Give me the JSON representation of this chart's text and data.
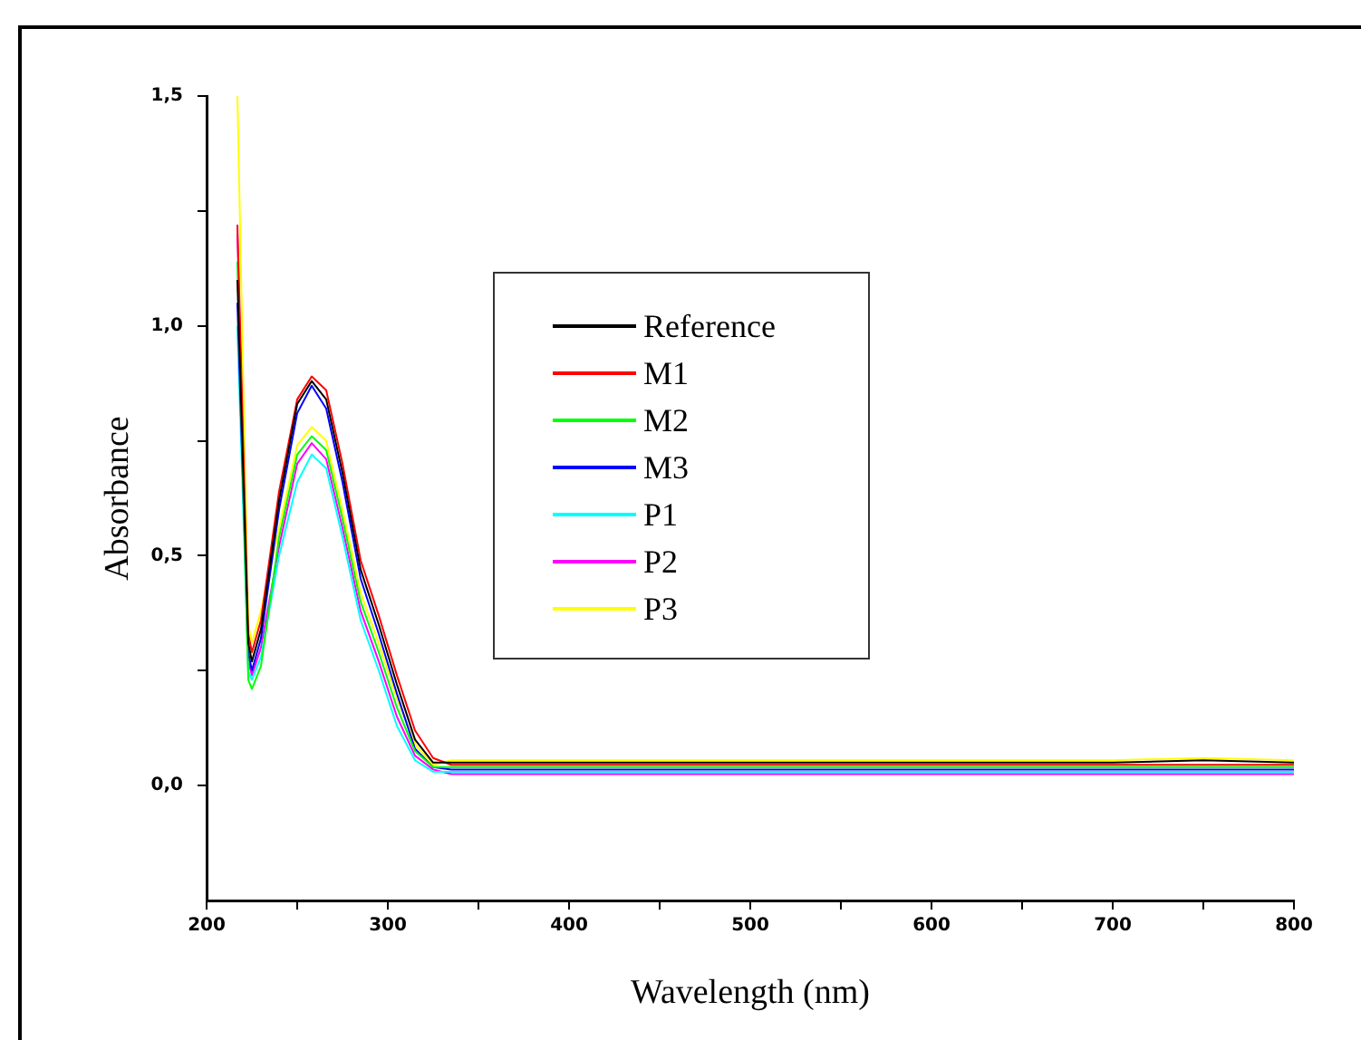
{
  "chart_data": {
    "type": "line",
    "xlabel": "Wavelength (nm)",
    "ylabel": "Absorbance",
    "x": [
      217,
      223,
      225,
      230,
      240,
      250,
      258,
      266,
      275,
      285,
      295,
      305,
      315,
      325,
      335,
      400,
      500,
      600,
      700,
      750,
      800
    ],
    "series": [
      {
        "name": "Reference",
        "color": "#000000",
        "values": [
          1.1,
          0.31,
          0.27,
          0.34,
          0.62,
          0.83,
          0.88,
          0.84,
          0.68,
          0.47,
          0.35,
          0.22,
          0.1,
          0.05,
          0.05,
          0.05,
          0.05,
          0.05,
          0.05,
          0.055,
          0.05
        ]
      },
      {
        "name": "M1",
        "color": "#ff0000",
        "values": [
          1.22,
          0.33,
          0.29,
          0.36,
          0.64,
          0.84,
          0.89,
          0.86,
          0.7,
          0.49,
          0.37,
          0.24,
          0.12,
          0.06,
          0.045,
          0.045,
          0.045,
          0.045,
          0.045,
          0.045,
          0.045
        ]
      },
      {
        "name": "M2",
        "color": "#00ff00",
        "values": [
          1.14,
          0.23,
          0.21,
          0.26,
          0.54,
          0.72,
          0.76,
          0.73,
          0.58,
          0.4,
          0.29,
          0.17,
          0.075,
          0.04,
          0.04,
          0.04,
          0.04,
          0.04,
          0.04,
          0.04,
          0.04
        ]
      },
      {
        "name": "M3",
        "color": "#0000ff",
        "values": [
          1.05,
          0.29,
          0.25,
          0.32,
          0.6,
          0.81,
          0.87,
          0.82,
          0.66,
          0.45,
          0.33,
          0.2,
          0.08,
          0.04,
          0.035,
          0.035,
          0.035,
          0.035,
          0.035,
          0.035,
          0.035
        ]
      },
      {
        "name": "P1",
        "color": "#00ffff",
        "values": [
          1.0,
          0.25,
          0.23,
          0.28,
          0.5,
          0.66,
          0.72,
          0.69,
          0.54,
          0.36,
          0.25,
          0.13,
          0.055,
          0.03,
          0.03,
          0.03,
          0.03,
          0.03,
          0.03,
          0.03,
          0.03
        ]
      },
      {
        "name": "P2",
        "color": "#ff00ff",
        "values": [
          1.2,
          0.27,
          0.24,
          0.3,
          0.52,
          0.7,
          0.745,
          0.71,
          0.56,
          0.38,
          0.27,
          0.15,
          0.065,
          0.035,
          0.025,
          0.025,
          0.025,
          0.025,
          0.025,
          0.025,
          0.025
        ]
      },
      {
        "name": "P3",
        "color": "#ffff00",
        "values": [
          1.5,
          0.35,
          0.31,
          0.38,
          0.56,
          0.74,
          0.78,
          0.75,
          0.6,
          0.42,
          0.31,
          0.19,
          0.09,
          0.045,
          0.055,
          0.055,
          0.055,
          0.055,
          0.055,
          0.06,
          0.055
        ]
      }
    ],
    "xlim": [
      200,
      800
    ],
    "xticks": [
      200,
      {
        "value": 250,
        "label": null
      },
      300,
      {
        "value": 350,
        "label": null
      },
      400,
      {
        "value": 450,
        "label": null
      },
      500,
      {
        "value": 550,
        "label": null
      },
      600,
      {
        "value": 650,
        "label": null
      },
      700,
      {
        "value": 750,
        "label": null
      },
      800
    ],
    "ylim": [
      -0.25,
      1.5
    ],
    "yticks": [
      {
        "value": 0,
        "label": "0,0"
      },
      {
        "value": 0.25,
        "label": null
      },
      {
        "value": 0.5,
        "label": "0,5"
      },
      {
        "value": 0.75,
        "label": null
      },
      {
        "value": 1,
        "label": "1,0"
      },
      {
        "value": 1.25,
        "label": null
      },
      {
        "value": 1.5,
        "label": "1,5"
      }
    ],
    "grid": false,
    "legend": "top left",
    "marker": "none",
    "line_style": "solid"
  }
}
